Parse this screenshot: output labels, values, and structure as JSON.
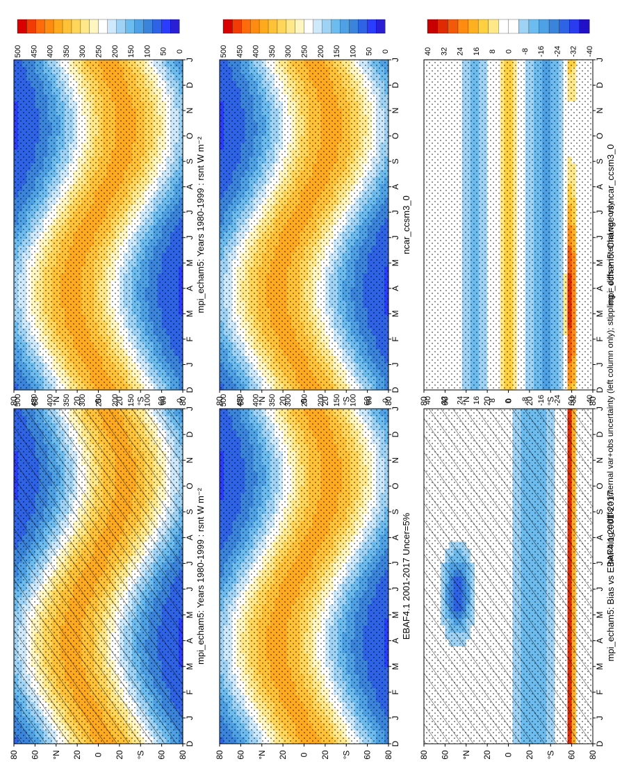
{
  "footnote": "hatching = diffs > internal var+obs uncertainty (left column only); stippling = diffs > internal var only",
  "colors": {
    "abs_scale": [
      "#2b1fd6",
      "#2a3cff",
      "#2f63e6",
      "#3b84dc",
      "#4ea1e4",
      "#6cbcf0",
      "#9ed3f5",
      "#cde9fb",
      "#ffffff",
      "#fff6c2",
      "#ffe88a",
      "#ffd65a",
      "#ffc236",
      "#ffaa1c",
      "#ff8c10",
      "#ff6a0a",
      "#f13c06",
      "#d80000"
    ],
    "diff_scale": [
      "#2010c8",
      "#2a3cf0",
      "#2f63e6",
      "#3b84dc",
      "#4ea1e4",
      "#6cbcf0",
      "#9ed3f5",
      "#ffffff",
      "#ffffff",
      "#ffe88a",
      "#ffd040",
      "#ffb020",
      "#ff8c10",
      "#f25a0a",
      "#e02a04",
      "#c80000"
    ]
  },
  "chart_data": [
    {
      "id": "top-left",
      "type": "heatmap",
      "title": "mpi_echam5: Years 1980-1999 : rsnt W m⁻²",
      "x_ticks": [
        "D",
        "J",
        "F",
        "M",
        "A",
        "M",
        "J",
        "J",
        "A",
        "S",
        "O",
        "N",
        "D",
        "J"
      ],
      "y_ticks": [
        "80",
        "60",
        "°N",
        "20",
        "0",
        "20",
        "°S",
        "60",
        "80"
      ],
      "colorbar_ticks": [
        "500",
        "450",
        "400",
        "350",
        "300",
        "250",
        "200",
        "150",
        "100",
        "50",
        "0"
      ],
      "field": "absolute",
      "hatching": true,
      "stippling": true
    },
    {
      "id": "top-right",
      "type": "heatmap",
      "title": "mpi_echam5: Years 1980-1999 : rsnt W m⁻²",
      "x_ticks": [
        "D",
        "J",
        "F",
        "M",
        "A",
        "M",
        "J",
        "J",
        "A",
        "S",
        "O",
        "N",
        "D",
        "J"
      ],
      "y_ticks": [
        "80",
        "60",
        "°N",
        "20",
        "0",
        "20",
        "°S",
        "60",
        "80"
      ],
      "colorbar_ticks": [
        "500",
        "450",
        "400",
        "350",
        "300",
        "250",
        "200",
        "150",
        "100",
        "50",
        "0"
      ],
      "field": "absolute",
      "hatching": false,
      "stippling": true
    },
    {
      "id": "middle-left",
      "type": "heatmap",
      "title": "EBAF4.1 2001-2017 Uncer=5%",
      "x_ticks": [
        "D",
        "J",
        "F",
        "M",
        "A",
        "M",
        "J",
        "J",
        "A",
        "S",
        "O",
        "N",
        "D",
        "J"
      ],
      "y_ticks": [
        "80",
        "60",
        "°N",
        "20",
        "0",
        "20",
        "°S",
        "60",
        "80"
      ],
      "colorbar_ticks": [
        "500",
        "450",
        "400",
        "350",
        "300",
        "250",
        "200",
        "150",
        "100",
        "50",
        "0"
      ],
      "field": "absolute",
      "hatching": false,
      "stippling": true
    },
    {
      "id": "middle-right",
      "type": "heatmap",
      "title": "ncar_ccsm3_0",
      "x_ticks": [
        "D",
        "J",
        "F",
        "M",
        "A",
        "M",
        "J",
        "J",
        "A",
        "S",
        "O",
        "N",
        "D",
        "J"
      ],
      "y_ticks": [
        "80",
        "60",
        "°N",
        "20",
        "0",
        "20",
        "°S",
        "60",
        "80"
      ],
      "colorbar_ticks": [
        "500",
        "450",
        "400",
        "350",
        "300",
        "250",
        "200",
        "150",
        "100",
        "50",
        "0"
      ],
      "field": "absolute",
      "hatching": false,
      "stippling": true
    },
    {
      "id": "bottom-left",
      "type": "heatmap",
      "title": "mpi_echam5: Bias vs EBAF4.1 2001-2017",
      "x_ticks": [
        "D",
        "J",
        "F",
        "M",
        "A",
        "M",
        "J",
        "J",
        "A",
        "S",
        "O",
        "N",
        "D",
        "J"
      ],
      "y_ticks": [
        "80",
        "60",
        "°N",
        "20",
        "0",
        "20",
        "°S",
        "60",
        "80"
      ],
      "colorbar_ticks": [
        "40",
        "32",
        "24",
        "16",
        "8",
        "0",
        "-8",
        "-16",
        "-24",
        "-32",
        "-40"
      ],
      "field": "bias",
      "hatching": true,
      "stippling": true
    },
    {
      "id": "bottom-right",
      "type": "heatmap",
      "title": "mpi_echam5: Change vs ncar_ccsm3_0",
      "x_ticks": [
        "D",
        "J",
        "F",
        "M",
        "A",
        "M",
        "J",
        "J",
        "A",
        "S",
        "O",
        "N",
        "D",
        "J"
      ],
      "y_ticks": [
        "80",
        "60",
        "°N",
        "20",
        "0",
        "20",
        "°S",
        "60",
        "80"
      ],
      "colorbar_ticks": [
        "40",
        "32",
        "24",
        "16",
        "8",
        "0",
        "-8",
        "-16",
        "-24",
        "-32",
        "-40"
      ],
      "field": "change",
      "hatching": false,
      "stippling": true
    }
  ]
}
